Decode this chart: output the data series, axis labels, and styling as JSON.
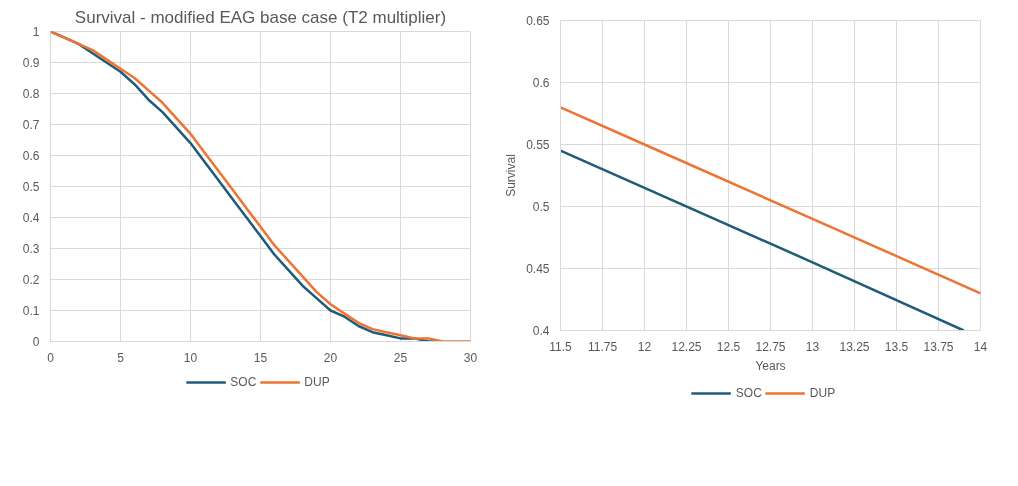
{
  "chart_data": [
    {
      "type": "line",
      "title": "Survival - modified EAG base case (T2 multiplier)",
      "x": [
        0,
        1,
        2,
        3,
        4,
        5,
        6,
        7,
        8,
        9,
        10,
        11,
        12,
        13,
        14,
        15,
        16,
        17,
        18,
        19,
        20,
        21,
        22,
        23,
        24,
        25,
        26,
        27,
        28,
        29,
        30
      ],
      "series": [
        {
          "name": "SOC",
          "color": "#1f5c7a",
          "values": [
            1,
            0.98,
            0.96,
            0.93,
            0.9,
            0.87,
            0.83,
            0.78,
            0.74,
            0.69,
            0.64,
            0.58,
            0.52,
            0.46,
            0.4,
            0.34,
            0.28,
            0.23,
            0.18,
            0.14,
            0.1,
            0.08,
            0.05,
            0.03,
            0.02,
            0.01,
            0.01,
            0,
            0,
            null,
            null
          ]
        },
        {
          "name": "DUP",
          "color": "#ee7433",
          "values": [
            1,
            0.98,
            0.96,
            0.94,
            0.91,
            0.88,
            0.85,
            0.81,
            0.77,
            0.72,
            0.67,
            0.61,
            0.55,
            0.49,
            0.43,
            0.37,
            0.31,
            0.26,
            0.21,
            0.16,
            0.12,
            0.09,
            0.06,
            0.04,
            0.03,
            0.02,
            0.01,
            0.01,
            0,
            0,
            0
          ]
        }
      ],
      "xlim": [
        0,
        30
      ],
      "xticks": [
        0,
        5,
        10,
        15,
        20,
        25,
        30
      ],
      "ylim": [
        0,
        1
      ],
      "yticks": [
        0,
        0.1,
        0.2,
        0.3,
        0.4,
        0.5,
        0.6,
        0.7,
        0.8,
        0.9,
        1
      ],
      "grid": true,
      "legend": "bottom",
      "marker": "none",
      "line_style": "solid"
    },
    {
      "type": "line",
      "xlabel": "Years",
      "ylabel": "Survival",
      "series": [
        {
          "name": "SOC",
          "color": "#1f5c7a",
          "x": [
            11.5,
            12,
            13,
            13.9
          ],
          "values": [
            0.545,
            0.515,
            0.455,
            0.4
          ]
        },
        {
          "name": "DUP",
          "color": "#ee7433",
          "x": [
            11.5,
            12,
            13,
            14
          ],
          "values": [
            0.58,
            0.55,
            0.49,
            0.43
          ]
        }
      ],
      "xlim": [
        11.5,
        14
      ],
      "xticks": [
        11.5,
        11.75,
        12,
        12.25,
        12.5,
        12.75,
        13,
        13.25,
        13.5,
        13.75,
        14
      ],
      "ylim": [
        0.4,
        0.65
      ],
      "yticks": [
        0.4,
        0.45,
        0.5,
        0.55,
        0.6,
        0.65
      ],
      "grid": true,
      "legend": "bottom",
      "marker": "none",
      "line_style": "solid"
    }
  ]
}
